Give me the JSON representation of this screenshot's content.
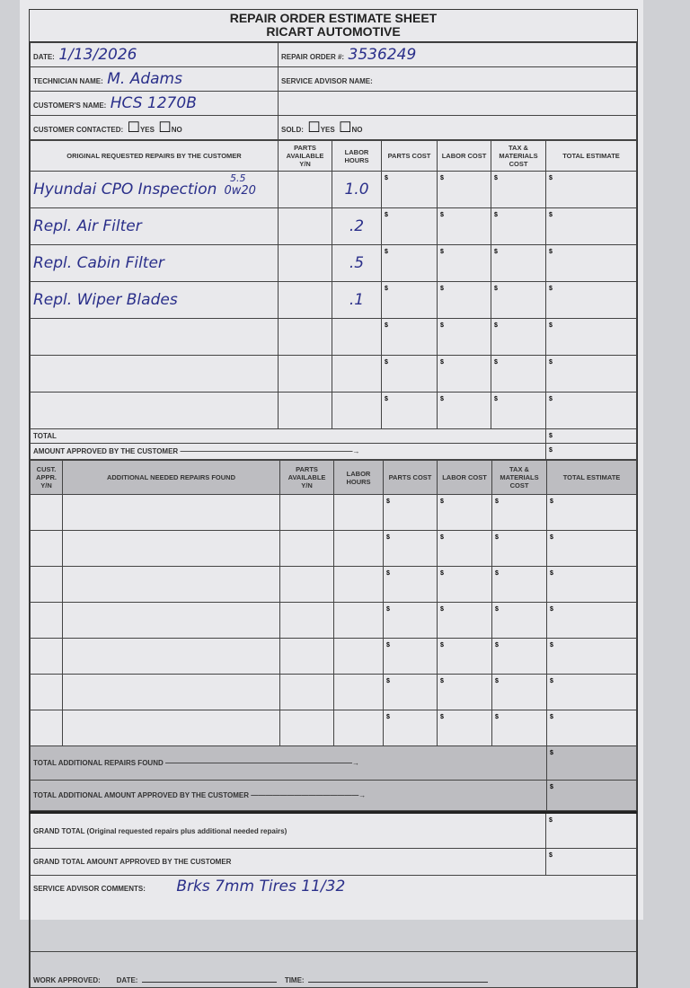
{
  "header": {
    "title": "REPAIR ORDER ESTIMATE SHEET",
    "company": "RICART AUTOMOTIVE"
  },
  "info": {
    "date_label": "DATE:",
    "date": "1/13/2026",
    "ro_label": "REPAIR ORDER #:",
    "ro": "3536249",
    "tech_label": "TECHNICIAN NAME:",
    "tech": "M. Adams",
    "advisor_label": "SERVICE ADVISOR NAME:",
    "advisor": "",
    "customer_label": "CUSTOMER'S NAME:",
    "customer": "HCS 1270B",
    "contacted_label": "CUSTOMER CONTACTED:",
    "sold_label": "SOLD:",
    "yes": "YES",
    "no": "NO"
  },
  "section1": {
    "headers": [
      "ORIGINAL REQUESTED REPAIRS BY THE CUSTOMER",
      "PARTS AVAILABLE Y/N",
      "LABOR HOURS",
      "PARTS COST",
      "LABOR COST",
      "TAX & MATERIALS COST",
      "TOTAL ESTIMATE"
    ],
    "rows": [
      {
        "desc": "Hyundai CPO Inspection",
        "note": "5.5",
        "oil": "0w20",
        "hours": "1.0"
      },
      {
        "desc": "Repl. Air Filter",
        "note": "",
        "oil": "",
        "hours": ".2"
      },
      {
        "desc": "Repl. Cabin Filter",
        "note": "",
        "oil": "",
        "hours": ".5"
      },
      {
        "desc": "Repl. Wiper Blades",
        "note": "",
        "oil": "",
        "hours": ".1"
      },
      {
        "desc": "",
        "note": "",
        "oil": "",
        "hours": ""
      },
      {
        "desc": "",
        "note": "",
        "oil": "",
        "hours": ""
      },
      {
        "desc": "",
        "note": "",
        "oil": "",
        "hours": ""
      }
    ],
    "total_label": "TOTAL",
    "approved_label": "AMOUNT APPROVED BY THE CUSTOMER"
  },
  "section2": {
    "headers": [
      "CUST. APPR. Y/N",
      "ADDITIONAL NEEDED REPAIRS FOUND",
      "PARTS AVAILABLE Y/N",
      "LABOR HOURS",
      "PARTS COST",
      "LABOR COST",
      "TAX & MATERIALS COST",
      "TOTAL ESTIMATE"
    ],
    "row_count": 7,
    "total_found_label": "TOTAL ADDITIONAL REPAIRS FOUND",
    "total_approved_label": "TOTAL ADDITIONAL AMOUNT APPROVED BY THE CUSTOMER"
  },
  "footer": {
    "grand_total_label": "GRAND TOTAL (Original requested repairs plus additional needed repairs)",
    "grand_approved_label": "GRAND TOTAL AMOUNT APPROVED BY THE CUSTOMER",
    "comments_label": "SERVICE ADVISOR COMMENTS:",
    "comments": "Brks 7mm Tires 11/32",
    "work_approved_label": "WORK APPROVED:",
    "date_label": "DATE:",
    "time_label": "TIME:"
  },
  "currency": "$"
}
